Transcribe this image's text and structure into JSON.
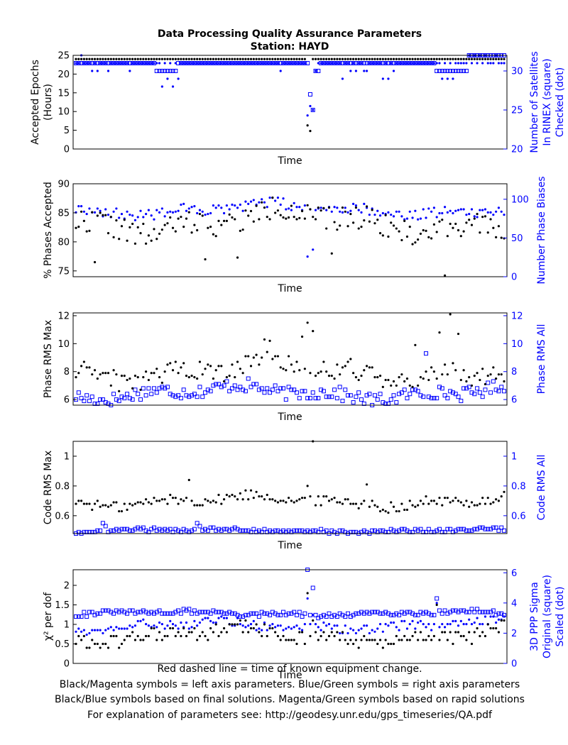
{
  "title_line1": "Data Processing Quality Assurance Parameters",
  "title_line2": "Station: HAYD",
  "footer": [
    "Red dashed line = time of known equipment change.",
    "Black/Magenta symbols = left axis parameters. Blue/Green symbols = right axis parameters",
    "Black/Blue symbols based on final solutions.  Magenta/Green symbols based on rapid solutions",
    "For explanation of parameters see: http://geodesy.unr.edu/gps_timeseries/QA.pdf"
  ],
  "colors": {
    "left": "#000000",
    "right": "#0000ff"
  },
  "chart_data": [
    {
      "type": "scatter",
      "xlabel": "Time",
      "ylabel_left": [
        "Accepted Epochs",
        "(Hours)"
      ],
      "ylabel_right": [
        "Number of Satellites",
        "In RINEX (square)",
        "Checked (dot)"
      ],
      "ylim_left": [
        0,
        25
      ],
      "yticks_left": [
        0,
        5,
        10,
        15,
        20,
        25
      ],
      "ylim_right": [
        20,
        32
      ],
      "yticks_right": [
        20,
        25,
        30
      ],
      "n": 160,
      "left_base": 24,
      "left_amp": 0,
      "left_round": 1,
      "left_special": [
        [
          86,
          6.3
        ],
        [
          87,
          4.8
        ]
      ],
      "right_sq_base": 31,
      "right_sq_amp": 0,
      "right_sq_round": 1,
      "right_sq_special": [
        [
          30,
          30
        ],
        [
          31,
          30
        ],
        [
          32,
          30
        ],
        [
          33,
          30
        ],
        [
          34,
          30
        ],
        [
          35,
          30
        ],
        [
          36,
          30
        ],
        [
          37,
          30
        ],
        [
          87,
          27
        ],
        [
          88,
          25
        ],
        [
          89,
          30
        ],
        [
          90,
          30
        ],
        [
          134,
          30
        ],
        [
          135,
          30
        ],
        [
          136,
          30
        ],
        [
          137,
          30
        ],
        [
          138,
          30
        ],
        [
          139,
          30
        ],
        [
          140,
          30
        ],
        [
          141,
          30
        ],
        [
          142,
          30
        ],
        [
          143,
          30
        ],
        [
          144,
          30
        ],
        [
          145,
          30
        ],
        [
          146,
          32
        ],
        [
          147,
          32
        ],
        [
          148,
          32
        ],
        [
          149,
          32
        ],
        [
          150,
          32
        ],
        [
          151,
          32
        ],
        [
          152,
          32
        ],
        [
          153,
          32
        ],
        [
          154,
          32
        ],
        [
          155,
          32
        ],
        [
          156,
          32
        ],
        [
          157,
          32
        ],
        [
          158,
          32
        ],
        [
          159,
          32
        ]
      ],
      "right_dot_base": 31,
      "right_dot_amp": 0.5,
      "right_dot_round": 1,
      "right_dot_special": [
        [
          2,
          32
        ],
        [
          6,
          30
        ],
        [
          8,
          30
        ],
        [
          12,
          30
        ],
        [
          20,
          30
        ],
        [
          32,
          28
        ],
        [
          34,
          29
        ],
        [
          36,
          28
        ],
        [
          38,
          29
        ],
        [
          76,
          30
        ],
        [
          86,
          24.3
        ],
        [
          87,
          25.5
        ],
        [
          88,
          25
        ],
        [
          89,
          30
        ],
        [
          99,
          29
        ],
        [
          102,
          30
        ],
        [
          114,
          29
        ],
        [
          116,
          29
        ],
        [
          118,
          30
        ],
        [
          136,
          29
        ],
        [
          138,
          29
        ],
        [
          140,
          29
        ],
        [
          146,
          32
        ],
        [
          150,
          32
        ],
        [
          152,
          32
        ]
      ]
    },
    {
      "type": "scatter",
      "xlabel": "Time",
      "ylabel_left": [
        "% Phases Accepted"
      ],
      "ylabel_right": [
        "Number Phase Biases"
      ],
      "ylim_left": [
        74,
        90
      ],
      "yticks_left": [
        75,
        80,
        85,
        90
      ],
      "ylim_right": [
        0,
        120
      ],
      "yticks_right": [
        0,
        50,
        100
      ],
      "n": 160,
      "left_base": 83.5,
      "left_amp": 3.5,
      "left_round": 0.1,
      "left_special": [
        [
          7,
          76.5
        ],
        [
          48,
          77
        ],
        [
          60,
          77.3
        ],
        [
          95,
          78
        ],
        [
          137,
          74.2
        ]
      ],
      "right_sq_base": null,
      "right_dot_base": 87,
      "right_dot_amp": 12,
      "right_dot_round": 1,
      "right_dot_special": [
        [
          86,
          26
        ],
        [
          88,
          35
        ]
      ]
    },
    {
      "type": "scatter",
      "xlabel": "Time",
      "ylabel_left": [
        "Phase RMS Max"
      ],
      "ylabel_right": [
        "Phase RMS All"
      ],
      "ylim_left": [
        5.6,
        12.2
      ],
      "yticks_left": [
        6,
        8,
        10,
        12
      ],
      "ylim_right": [
        5.6,
        12.2
      ],
      "yticks_right": [
        6,
        8,
        10,
        12
      ],
      "n": 160,
      "left_base": 8,
      "left_amp": 1.2,
      "left_round": 0.1,
      "left_special": [
        [
          86,
          11.5
        ],
        [
          88,
          10.9
        ],
        [
          84,
          10.5
        ],
        [
          139,
          12.1
        ],
        [
          142,
          10.7
        ],
        [
          135,
          10.8
        ],
        [
          126,
          9.9
        ],
        [
          70,
          10.3
        ],
        [
          72,
          10.2
        ]
      ],
      "right_sq_base": 6.5,
      "right_sq_amp": 0.8,
      "right_sq_round": 0.1,
      "right_sq_special": [
        [
          130,
          9.3
        ]
      ],
      "right_dot_base": null
    },
    {
      "type": "scatter",
      "xlabel": "Time",
      "ylabel_left": [
        "Code RMS Max"
      ],
      "ylabel_right": [
        "Code RMS All"
      ],
      "ylim_left": [
        0.48,
        1.1
      ],
      "yticks_left": [
        0.6,
        0.8,
        1
      ],
      "ylim_right": [
        0.48,
        1.1
      ],
      "yticks_right": [
        0.6,
        0.8,
        1
      ],
      "n": 160,
      "left_base": 0.7,
      "left_amp": 0.06,
      "left_round": 0.01,
      "left_special": [
        [
          88,
          1.1
        ],
        [
          42,
          0.84
        ],
        [
          86,
          0.8
        ],
        [
          108,
          0.81
        ]
      ],
      "right_sq_base": 0.5,
      "right_sq_amp": 0.02,
      "right_sq_round": 0.01,
      "right_sq_special": [
        [
          10,
          0.55
        ],
        [
          11,
          0.53
        ],
        [
          45,
          0.55
        ],
        [
          46,
          0.53
        ]
      ],
      "right_dot_base": null
    },
    {
      "type": "scatter",
      "xlabel": "Time",
      "ylabel_left": [
        "χ² per dof"
      ],
      "ylabel_right": [
        "3D PPP Sigma",
        "Original (square)",
        "Scaled (dot)"
      ],
      "ylim_left": [
        0,
        2.4
      ],
      "yticks_left": [
        0,
        0.5,
        1,
        1.5,
        2
      ],
      "ylim_right": [
        0,
        6.2
      ],
      "yticks_right": [
        0,
        2,
        4,
        6
      ],
      "n": 160,
      "left_base": 0.7,
      "left_amp": 0.3,
      "left_round": 0.1,
      "left_special": [
        [
          86,
          1.8
        ],
        [
          88,
          1.1
        ],
        [
          134,
          1.5
        ]
      ],
      "right_sq_base": 3.3,
      "right_sq_amp": 0.25,
      "right_sq_round": 0.1,
      "right_sq_special": [
        [
          86,
          6.2
        ],
        [
          88,
          5.0
        ],
        [
          134,
          4.3
        ]
      ],
      "right_dot_base": 2.5,
      "right_dot_amp": 0.5,
      "right_dot_round": 0.1,
      "right_dot_special": [
        [
          86,
          4.3
        ],
        [
          88,
          3.2
        ],
        [
          134,
          4.0
        ]
      ]
    }
  ]
}
